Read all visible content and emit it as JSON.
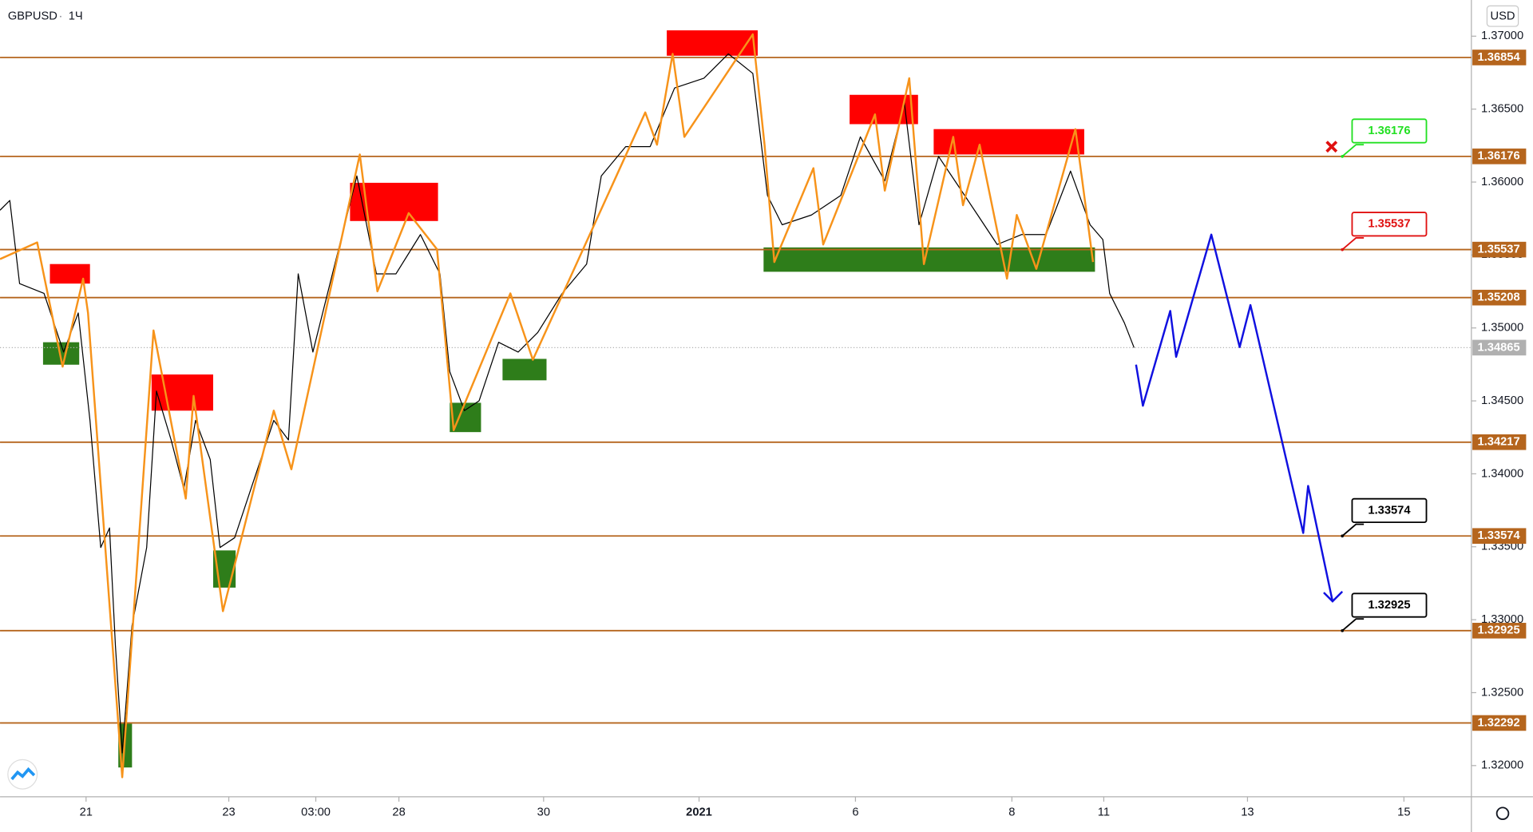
{
  "chart_data": {
    "type": "line",
    "title": "GBPUSD",
    "interval": "1Ч",
    "currency": "USD",
    "xlim": [
      0,
      301
    ],
    "ylim": [
      1.31786,
      1.37248
    ],
    "xticks": [
      {
        "value": 17.6,
        "label": "21"
      },
      {
        "value": 46.8,
        "label": "23"
      },
      {
        "value": 64.6,
        "label": "03:00"
      },
      {
        "value": 81.6,
        "label": "28"
      },
      {
        "value": 111.2,
        "label": "30"
      },
      {
        "value": 143,
        "label": "2021"
      },
      {
        "value": 175,
        "label": "6"
      },
      {
        "value": 207,
        "label": "8"
      },
      {
        "value": 225.8,
        "label": "11"
      },
      {
        "value": 255.2,
        "label": "13"
      },
      {
        "value": 287.2,
        "label": "15"
      }
    ],
    "yticks": [
      {
        "value": 1.37,
        "label": "1.37000"
      },
      {
        "value": 1.365,
        "label": "1.36500"
      },
      {
        "value": 1.36,
        "label": "1.36000"
      },
      {
        "value": 1.355,
        "label": "1.35500"
      },
      {
        "value": 1.35,
        "label": "1.35000"
      },
      {
        "value": 1.345,
        "label": "1.34500"
      },
      {
        "value": 1.34,
        "label": "1.34000"
      },
      {
        "value": 1.335,
        "label": "1.33500"
      },
      {
        "value": 1.33,
        "label": "1.33000"
      },
      {
        "value": 1.325,
        "label": "1.32500"
      },
      {
        "value": 1.32,
        "label": "1.32000"
      }
    ],
    "levels": {
      "color": "#b5651d",
      "values": [
        1.36854,
        1.36176,
        1.35537,
        1.35208,
        1.34217,
        1.33574,
        1.32925,
        1.32292
      ]
    },
    "last": {
      "color": "#b0b0b0",
      "value": 1.34865
    },
    "zones": [
      {
        "color": "#ff0000",
        "x": [
          10.2,
          18.4
        ],
        "y": [
          1.35304,
          1.35438
        ]
      },
      {
        "color": "#ff0000",
        "x": [
          31,
          43.6
        ],
        "y": [
          1.34433,
          1.34681
        ]
      },
      {
        "color": "#ff0000",
        "x": [
          71.6,
          89.6
        ],
        "y": [
          1.35733,
          1.35995
        ]
      },
      {
        "color": "#ff0000",
        "x": [
          136.4,
          155
        ],
        "y": [
          1.36866,
          1.3704
        ]
      },
      {
        "color": "#ff0000",
        "x": [
          173.8,
          187.8
        ],
        "y": [
          1.36397,
          1.36598
        ]
      },
      {
        "color": "#ff0000",
        "x": [
          191,
          221.8
        ],
        "y": [
          1.36189,
          1.36363
        ]
      },
      {
        "color": "#2e7d1a",
        "x": [
          8.8,
          16.2
        ],
        "y": [
          1.34748,
          1.34902
        ]
      },
      {
        "color": "#2e7d1a",
        "x": [
          92,
          98.4
        ],
        "y": [
          1.34286,
          1.34487
        ]
      },
      {
        "color": "#2e7d1a",
        "x": [
          102.8,
          111.8
        ],
        "y": [
          1.34641,
          1.34788
        ]
      },
      {
        "color": "#2e7d1a",
        "x": [
          43.6,
          48.2
        ],
        "y": [
          1.3322,
          1.33475
        ]
      },
      {
        "color": "#2e7d1a",
        "x": [
          24.2,
          27
        ],
        "y": [
          1.31987,
          1.32288
        ]
      },
      {
        "color": "#2e7d1a",
        "x": [
          156.2,
          224
        ],
        "y": [
          1.35385,
          1.35552
        ]
      }
    ],
    "series": [
      {
        "color": "#000000",
        "x": [
          0,
          2,
          4,
          9,
          13,
          16,
          18.4,
          20.6,
          22.4,
          23.6,
          25,
          27,
          30,
          32,
          35,
          37.6,
          40,
          43,
          45,
          48,
          52,
          56,
          59,
          61,
          64,
          69,
          73,
          77,
          81,
          86,
          90,
          92,
          95,
          98,
          102,
          106,
          110,
          115,
          120,
          123,
          128,
          133,
          138,
          144,
          149,
          154,
          157,
          160,
          166,
          172,
          176,
          181,
          185,
          188,
          192,
          196,
          200,
          204,
          209,
          214,
          219,
          223,
          225.6,
          227,
          230,
          232
        ],
        "values": [
          1.35807,
          1.35874,
          1.35304,
          1.35237,
          1.34835,
          1.35103,
          1.34366,
          1.33495,
          1.33629,
          1.32825,
          1.32087,
          1.32959,
          1.33495,
          1.34567,
          1.34232,
          1.33897,
          1.34366,
          1.34098,
          1.33495,
          1.33562,
          1.33964,
          1.34366,
          1.34232,
          1.35371,
          1.34835,
          1.35505,
          1.36042,
          1.35371,
          1.35371,
          1.3564,
          1.35371,
          1.34701,
          1.34433,
          1.345,
          1.34902,
          1.34835,
          1.34969,
          1.35237,
          1.35438,
          1.36042,
          1.36243,
          1.36243,
          1.36645,
          1.36712,
          1.36879,
          1.36745,
          1.35908,
          1.35707,
          1.35774,
          1.35908,
          1.3631,
          1.36008,
          1.36544,
          1.35707,
          1.36176,
          1.35975,
          1.35774,
          1.35572,
          1.3564,
          1.3564,
          1.36075,
          1.35707,
          1.35606,
          1.35237,
          1.35036,
          1.34865
        ]
      },
      {
        "color": "#f7931a",
        "x": [
          0,
          7.6,
          12.8,
          17,
          18,
          25,
          31.4,
          38,
          39.6,
          45.6,
          56,
          59.6,
          73.6,
          77.2,
          83.6,
          89.4,
          92.8,
          104.4,
          109,
          132,
          134.4,
          137.6,
          140,
          154,
          156.4,
          158.4,
          166.4,
          168.4,
          179,
          181,
          186,
          189,
          195,
          197,
          200.4,
          206,
          208,
          212,
          220,
          223.6
        ],
        "values": [
          1.35472,
          1.35586,
          1.34735,
          1.35338,
          1.35103,
          1.3192,
          1.34983,
          1.3383,
          1.34534,
          1.33059,
          1.34433,
          1.34031,
          1.36189,
          1.35251,
          1.35787,
          1.35539,
          1.34299,
          1.35237,
          1.34782,
          1.36477,
          1.36256,
          1.36879,
          1.3631,
          1.37013,
          1.36256,
          1.35452,
          1.36095,
          1.35572,
          1.36464,
          1.35941,
          1.36712,
          1.35438,
          1.3631,
          1.35841,
          1.36256,
          1.35338,
          1.35774,
          1.35405,
          1.36363,
          1.35452
        ]
      },
      {
        "color": "#1010e0",
        "x": [
          232.4,
          233.8,
          239.4,
          240.6,
          247.8,
          253.6,
          255.8,
          266.6,
          267.6,
          272.6
        ],
        "values": [
          1.34748,
          1.34467,
          1.35117,
          1.34802,
          1.3564,
          1.34869,
          1.35157,
          1.33595,
          1.33917,
          1.33126
        ]
      }
    ],
    "callouts": [
      {
        "value": 1.36176,
        "x": 274.6,
        "color": "#22e022"
      },
      {
        "value": 1.35537,
        "x": 274.6,
        "color": "#e01010"
      },
      {
        "value": 1.33574,
        "x": 274.6,
        "color": "#000000"
      },
      {
        "value": 1.32925,
        "x": 274.6,
        "color": "#000000"
      }
    ]
  }
}
